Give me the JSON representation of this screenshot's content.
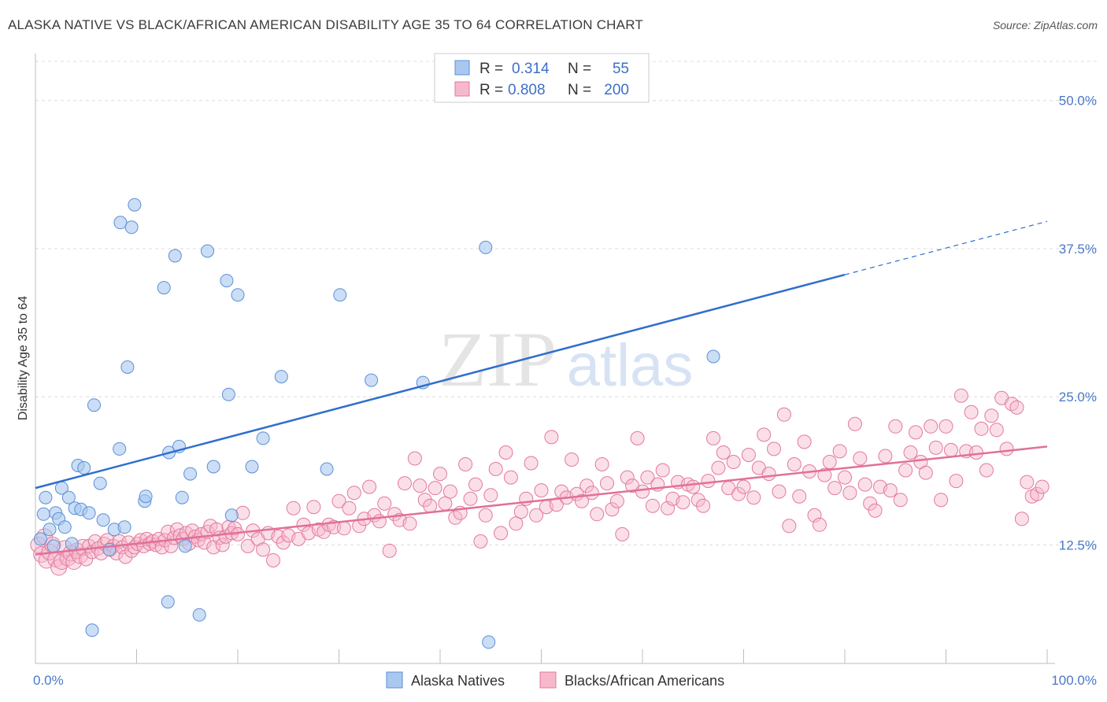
{
  "title": "ALASKA NATIVE VS BLACK/AFRICAN AMERICAN DISABILITY AGE 35 TO 64 CORRELATION CHART",
  "source": "Source: ZipAtlas.com",
  "watermark": {
    "zip": "ZIP",
    "atlas": "atlas"
  },
  "legend": {
    "rows": [
      {
        "r_label": "R =",
        "r_value": "0.314",
        "n_label": "N =",
        "n_value": "55",
        "color": "#a8c8f0",
        "stroke": "#5b8fd6"
      },
      {
        "r_label": "R =",
        "r_value": "0.808",
        "n_label": "N =",
        "n_value": "200",
        "color": "#f7b8cc",
        "stroke": "#e27a9c"
      }
    ]
  },
  "bottom_legend": [
    {
      "label": "Alaska Natives",
      "color": "#a8c8f0",
      "stroke": "#5b8fd6"
    },
    {
      "label": "Blacks/African Americans",
      "color": "#f7b8cc",
      "stroke": "#e27a9c"
    }
  ],
  "chart_data": {
    "type": "scatter",
    "xlabel": "",
    "ylabel": "Disability Age 35 to 64",
    "xlim": [
      0,
      100
    ],
    "ylim": [
      2.5,
      53.5
    ],
    "x_tick_labels": [
      "0.0%",
      "100.0%"
    ],
    "y_ticks": [
      12.5,
      25.0,
      37.5,
      50.0
    ],
    "y_tick_labels": [
      "12.5%",
      "25.0%",
      "37.5%",
      "50.0%"
    ],
    "grid": true,
    "series": [
      {
        "name": "Alaska Natives",
        "color": "#a8c8f0",
        "stroke": "#5b8fd6",
        "trend": {
          "x0": 0,
          "y0": 17.3,
          "x1": 80,
          "y1": 35.3,
          "dash_to_x": 100,
          "dash_to_y": 39.8,
          "color": "#2f6fcc"
        },
        "points": [
          [
            0.5,
            13.0
          ],
          [
            0.8,
            15.1
          ],
          [
            1.0,
            16.5
          ],
          [
            1.4,
            13.8
          ],
          [
            1.8,
            12.4
          ],
          [
            2.0,
            15.2
          ],
          [
            2.3,
            14.7
          ],
          [
            2.6,
            17.3
          ],
          [
            2.9,
            14.0
          ],
          [
            3.3,
            16.5
          ],
          [
            3.6,
            12.6
          ],
          [
            3.9,
            15.6
          ],
          [
            4.2,
            19.2
          ],
          [
            4.5,
            15.5
          ],
          [
            4.8,
            19.0
          ],
          [
            5.3,
            15.2
          ],
          [
            5.6,
            5.3
          ],
          [
            5.8,
            24.3
          ],
          [
            6.4,
            17.7
          ],
          [
            6.7,
            14.6
          ],
          [
            7.3,
            12.1
          ],
          [
            7.8,
            13.8
          ],
          [
            8.3,
            20.6
          ],
          [
            8.4,
            39.7
          ],
          [
            8.8,
            14.0
          ],
          [
            9.1,
            27.5
          ],
          [
            9.5,
            39.3
          ],
          [
            9.8,
            41.2
          ],
          [
            10.8,
            16.2
          ],
          [
            10.9,
            16.6
          ],
          [
            12.7,
            34.2
          ],
          [
            13.1,
            7.7
          ],
          [
            13.2,
            20.3
          ],
          [
            13.8,
            36.9
          ],
          [
            14.2,
            20.8
          ],
          [
            14.5,
            16.5
          ],
          [
            14.8,
            12.4
          ],
          [
            15.3,
            18.5
          ],
          [
            16.2,
            6.6
          ],
          [
            17.0,
            37.3
          ],
          [
            17.6,
            19.1
          ],
          [
            18.9,
            34.8
          ],
          [
            19.1,
            25.2
          ],
          [
            19.4,
            15.0
          ],
          [
            20.0,
            33.6
          ],
          [
            21.4,
            19.1
          ],
          [
            22.5,
            21.5
          ],
          [
            24.3,
            26.7
          ],
          [
            28.8,
            18.9
          ],
          [
            30.1,
            33.6
          ],
          [
            33.2,
            26.4
          ],
          [
            38.3,
            26.2
          ],
          [
            44.5,
            37.6
          ],
          [
            44.8,
            4.3
          ],
          [
            67.0,
            28.4
          ]
        ]
      },
      {
        "name": "Blacks/African Americans",
        "color": "#f7b8cc",
        "stroke": "#e27a9c",
        "trend": {
          "x0": 0,
          "y0": 11.7,
          "x1": 100,
          "y1": 20.8,
          "color": "#e0709a"
        },
        "points": [
          [
            0.3,
            12.5
          ],
          [
            0.6,
            11.7
          ],
          [
            0.9,
            13.2
          ],
          [
            1.1,
            11.2
          ],
          [
            1.4,
            11.9
          ],
          [
            1.7,
            12.5
          ],
          [
            2.0,
            11.3
          ],
          [
            2.3,
            10.6
          ],
          [
            2.6,
            11.1
          ],
          [
            2.9,
            12.2
          ],
          [
            3.2,
            11.4
          ],
          [
            3.5,
            11.8
          ],
          [
            3.8,
            11.1
          ],
          [
            4.1,
            12.0
          ],
          [
            4.4,
            11.6
          ],
          [
            4.7,
            12.3
          ],
          [
            5.0,
            11.3
          ],
          [
            5.3,
            12.4
          ],
          [
            5.6,
            11.9
          ],
          [
            5.9,
            12.8
          ],
          [
            6.2,
            12.2
          ],
          [
            6.5,
            11.8
          ],
          [
            6.8,
            12.6
          ],
          [
            7.1,
            12.9
          ],
          [
            7.4,
            12.1
          ],
          [
            7.7,
            12.4
          ],
          [
            8.0,
            11.8
          ],
          [
            8.3,
            12.8
          ],
          [
            8.6,
            12.3
          ],
          [
            8.9,
            11.5
          ],
          [
            9.2,
            12.7
          ],
          [
            9.5,
            12.0
          ],
          [
            9.8,
            12.3
          ],
          [
            10.1,
            12.6
          ],
          [
            10.4,
            12.9
          ],
          [
            10.7,
            12.4
          ],
          [
            11.0,
            13.0
          ],
          [
            11.3,
            12.6
          ],
          [
            11.6,
            12.8
          ],
          [
            11.9,
            12.5
          ],
          [
            12.2,
            13.0
          ],
          [
            12.5,
            12.3
          ],
          [
            12.8,
            12.9
          ],
          [
            13.1,
            13.6
          ],
          [
            13.4,
            12.4
          ],
          [
            13.7,
            13.1
          ],
          [
            14.0,
            13.8
          ],
          [
            14.3,
            13.3
          ],
          [
            14.6,
            13.0
          ],
          [
            14.9,
            13.5
          ],
          [
            15.2,
            12.6
          ],
          [
            15.5,
            13.7
          ],
          [
            15.8,
            13.2
          ],
          [
            16.1,
            12.9
          ],
          [
            16.4,
            13.4
          ],
          [
            16.7,
            12.7
          ],
          [
            17.0,
            13.6
          ],
          [
            17.3,
            14.1
          ],
          [
            17.6,
            12.3
          ],
          [
            17.9,
            13.8
          ],
          [
            18.2,
            13.1
          ],
          [
            18.5,
            12.5
          ],
          [
            18.8,
            13.2
          ],
          [
            19.1,
            14.0
          ],
          [
            19.4,
            13.5
          ],
          [
            19.7,
            13.9
          ],
          [
            20.0,
            13.4
          ],
          [
            20.5,
            15.2
          ],
          [
            21.0,
            12.4
          ],
          [
            21.5,
            13.7
          ],
          [
            22.0,
            13.0
          ],
          [
            22.5,
            12.1
          ],
          [
            23.0,
            13.5
          ],
          [
            23.5,
            11.2
          ],
          [
            24.0,
            13.2
          ],
          [
            24.5,
            12.7
          ],
          [
            25.0,
            13.3
          ],
          [
            25.5,
            15.6
          ],
          [
            26.0,
            13.0
          ],
          [
            26.5,
            14.2
          ],
          [
            27.0,
            13.5
          ],
          [
            27.5,
            15.7
          ],
          [
            28.0,
            13.8
          ],
          [
            28.5,
            13.6
          ],
          [
            29.0,
            14.2
          ],
          [
            29.5,
            14.0
          ],
          [
            30.0,
            16.2
          ],
          [
            30.5,
            13.9
          ],
          [
            31.0,
            15.6
          ],
          [
            31.5,
            16.9
          ],
          [
            32.0,
            14.1
          ],
          [
            32.5,
            14.7
          ],
          [
            33.0,
            17.4
          ],
          [
            33.5,
            15.0
          ],
          [
            34.0,
            14.5
          ],
          [
            34.5,
            16.0
          ],
          [
            35.0,
            12.0
          ],
          [
            35.5,
            15.1
          ],
          [
            36.0,
            14.6
          ],
          [
            36.5,
            17.7
          ],
          [
            37.0,
            14.3
          ],
          [
            37.5,
            19.8
          ],
          [
            38.0,
            17.5
          ],
          [
            38.5,
            16.3
          ],
          [
            39.0,
            15.8
          ],
          [
            39.5,
            17.3
          ],
          [
            40.0,
            18.5
          ],
          [
            40.5,
            16.0
          ],
          [
            41.0,
            17.0
          ],
          [
            41.5,
            14.8
          ],
          [
            42.0,
            15.2
          ],
          [
            42.5,
            19.3
          ],
          [
            43.0,
            16.4
          ],
          [
            43.5,
            17.6
          ],
          [
            44.0,
            12.8
          ],
          [
            44.5,
            15.0
          ],
          [
            45.0,
            16.7
          ],
          [
            45.5,
            18.9
          ],
          [
            46.0,
            13.5
          ],
          [
            46.5,
            20.3
          ],
          [
            47.0,
            18.2
          ],
          [
            47.5,
            14.3
          ],
          [
            48.0,
            15.3
          ],
          [
            48.5,
            16.4
          ],
          [
            49.0,
            19.4
          ],
          [
            49.5,
            15.0
          ],
          [
            50.0,
            17.1
          ],
          [
            50.5,
            15.7
          ],
          [
            51.0,
            21.6
          ],
          [
            51.5,
            15.9
          ],
          [
            52.0,
            17.0
          ],
          [
            52.5,
            16.5
          ],
          [
            53.0,
            19.7
          ],
          [
            53.5,
            16.8
          ],
          [
            54.0,
            16.2
          ],
          [
            54.5,
            17.5
          ],
          [
            55.0,
            16.9
          ],
          [
            55.5,
            15.1
          ],
          [
            56.0,
            19.3
          ],
          [
            56.5,
            17.7
          ],
          [
            57.0,
            15.5
          ],
          [
            57.5,
            16.2
          ],
          [
            58.0,
            13.4
          ],
          [
            58.5,
            18.2
          ],
          [
            59.0,
            17.5
          ],
          [
            59.5,
            21.5
          ],
          [
            60.0,
            17.0
          ],
          [
            60.5,
            18.2
          ],
          [
            61.0,
            15.8
          ],
          [
            61.5,
            17.6
          ],
          [
            62.0,
            18.8
          ],
          [
            62.5,
            15.6
          ],
          [
            63.0,
            16.4
          ],
          [
            63.5,
            17.8
          ],
          [
            64.0,
            16.1
          ],
          [
            64.5,
            17.6
          ],
          [
            65.0,
            17.4
          ],
          [
            65.5,
            16.3
          ],
          [
            66.0,
            15.8
          ],
          [
            66.5,
            17.9
          ],
          [
            67.0,
            21.5
          ],
          [
            67.5,
            19.0
          ],
          [
            68.0,
            20.3
          ],
          [
            68.5,
            17.3
          ],
          [
            69.0,
            19.5
          ],
          [
            69.5,
            16.8
          ],
          [
            70.0,
            17.4
          ],
          [
            70.5,
            20.1
          ],
          [
            71.0,
            16.5
          ],
          [
            71.5,
            19.0
          ],
          [
            72.0,
            21.8
          ],
          [
            72.5,
            18.5
          ],
          [
            73.0,
            20.6
          ],
          [
            73.5,
            17.0
          ],
          [
            74.0,
            23.5
          ],
          [
            74.5,
            14.1
          ],
          [
            75.0,
            19.3
          ],
          [
            75.5,
            16.6
          ],
          [
            76.0,
            21.2
          ],
          [
            76.5,
            18.7
          ],
          [
            77.0,
            15.0
          ],
          [
            77.5,
            14.2
          ],
          [
            78.0,
            18.4
          ],
          [
            78.5,
            19.5
          ],
          [
            79.0,
            17.3
          ],
          [
            79.5,
            20.4
          ],
          [
            80.0,
            18.2
          ],
          [
            80.5,
            16.9
          ],
          [
            81.0,
            22.7
          ],
          [
            81.5,
            19.8
          ],
          [
            82.0,
            17.6
          ],
          [
            82.5,
            16.0
          ],
          [
            83.0,
            15.4
          ],
          [
            83.5,
            17.4
          ],
          [
            84.0,
            20.0
          ],
          [
            84.5,
            17.1
          ],
          [
            85.0,
            22.5
          ],
          [
            85.5,
            16.3
          ],
          [
            86.0,
            18.8
          ],
          [
            86.5,
            20.3
          ],
          [
            87.0,
            22.0
          ],
          [
            87.5,
            19.5
          ],
          [
            88.0,
            18.6
          ],
          [
            88.5,
            22.5
          ],
          [
            89.0,
            20.7
          ],
          [
            89.5,
            16.3
          ],
          [
            90.0,
            22.5
          ],
          [
            90.5,
            20.5
          ],
          [
            91.0,
            17.9
          ],
          [
            91.5,
            25.1
          ],
          [
            92.0,
            20.4
          ],
          [
            92.5,
            23.7
          ],
          [
            93.0,
            20.3
          ],
          [
            93.5,
            22.3
          ],
          [
            94.0,
            18.8
          ],
          [
            94.5,
            23.4
          ],
          [
            95.0,
            22.2
          ],
          [
            95.5,
            24.9
          ],
          [
            96.0,
            20.6
          ],
          [
            96.5,
            24.4
          ],
          [
            97.0,
            24.1
          ],
          [
            97.5,
            14.7
          ],
          [
            98.0,
            17.8
          ],
          [
            98.5,
            16.6
          ],
          [
            99.0,
            16.8
          ],
          [
            99.5,
            17.4
          ]
        ]
      }
    ]
  }
}
